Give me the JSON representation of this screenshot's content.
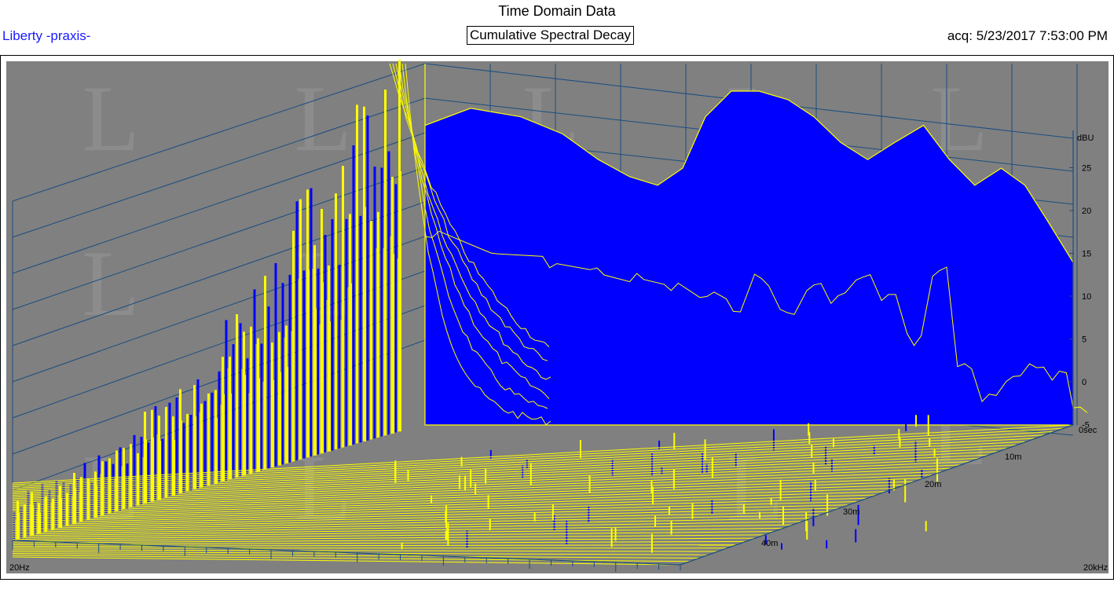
{
  "header": {
    "title": "Time Domain Data",
    "device_label": "Liberty -praxis-",
    "mode_label": "Cumulative Spectral Decay",
    "acq_label": "acq: 5/23/2017 7:53:00 PM"
  },
  "colors": {
    "background": "#808080",
    "fill": "#0000ff",
    "trace": "#ffff00",
    "grid": "#1a4d80",
    "header_left": "#1a1aff"
  },
  "chart_data": {
    "type": "waterfall",
    "title": "Cumulative Spectral Decay",
    "freq_axis": {
      "min_label": "20Hz",
      "max_label": "20kHz",
      "scale": "log"
    },
    "time_axis": {
      "unit": "sec",
      "ticks": [
        "0sec",
        "10m",
        "20m",
        "30m",
        "40m"
      ]
    },
    "db_axis": {
      "unit": "dBU",
      "ticks": [
        "-5",
        "0",
        "5",
        "10",
        "15",
        "20",
        "25"
      ]
    },
    "slices": [
      {
        "t": 0,
        "freq": [
          1500,
          1800,
          2200,
          2600,
          3000,
          3400,
          3800,
          4200,
          4600,
          5100,
          5700,
          6400,
          7100,
          7900,
          8800,
          9800,
          11000,
          12200,
          13500,
          15000,
          16500,
          18000,
          20000
        ],
        "db": [
          26,
          28,
          27,
          25,
          22,
          20,
          19,
          21,
          27,
          30,
          30,
          29,
          27,
          24,
          22,
          24,
          26,
          22,
          19,
          21,
          19,
          15,
          10
        ]
      },
      {
        "t": 0.002,
        "freq": [
          1500,
          1900,
          2400,
          2900,
          3400,
          3900,
          4500,
          5000,
          5600,
          6200,
          6900,
          7600,
          8400,
          9300,
          10300,
          11400,
          12600,
          13900,
          15300,
          16800,
          18400,
          20000
        ],
        "db": [
          13,
          11,
          10,
          9,
          8,
          7,
          6,
          5,
          8,
          4,
          7,
          6,
          8,
          6,
          1,
          9,
          -2,
          -6,
          -4,
          -2,
          -3,
          -7
        ]
      }
    ]
  }
}
